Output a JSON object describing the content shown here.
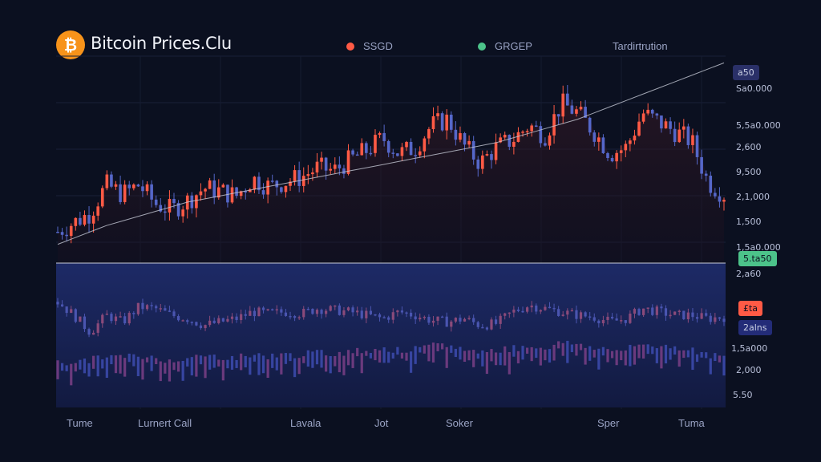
{
  "header": {
    "title": "Bitcoin Prices.Clu",
    "logo_glyph": "₿",
    "legend": [
      {
        "label": "SSGD",
        "color": "#ff5a45"
      },
      {
        "label": "GRGEP",
        "color": "#4cc38a"
      },
      {
        "label": "Tardirtrution",
        "color": ""
      }
    ]
  },
  "price_axis": {
    "labels": [
      "Sa0.000",
      "5,5a0.000",
      "2,600",
      "9,500",
      "2,1,000",
      "1,500",
      "1,5a0.000",
      "2,a60",
      "1,5a000",
      "2,000",
      "5.50"
    ],
    "badges": [
      {
        "text": "a50",
        "type": "current"
      },
      {
        "text": "5.ta50",
        "type": "green"
      },
      {
        "text": "£ta",
        "type": "red"
      },
      {
        "text": "2alns",
        "type": "blue"
      }
    ]
  },
  "x_axis": {
    "labels": [
      "Tume",
      "Lurnert Call",
      "Lavala",
      "Jot",
      "Soker",
      "Sper",
      "Tuma"
    ]
  },
  "colors": {
    "background": "#0b1020",
    "up": "#ff5a45",
    "down": "#5567c9",
    "green": "#4cc38a",
    "trend": "#c5c9d6",
    "lower_panel": "#141c44"
  },
  "chart_data": {
    "type": "line",
    "title": "Bitcoin Prices.Clu",
    "series": [
      {
        "name": "SSGD",
        "values": [
          40,
          46,
          52,
          70,
          64,
          70,
          58,
          54,
          60,
          68,
          66,
          63,
          74,
          69,
          72,
          75,
          81,
          79,
          86,
          92,
          100,
          90,
          94,
          108,
          112,
          95,
          84,
          94,
          99,
          108,
          102,
          122,
          116,
          104,
          90,
          94,
          116,
          110,
          104,
          98,
          72,
          64
        ]
      },
      {
        "name": "GRGEP",
        "values": [
          32,
          36,
          40,
          44,
          47,
          50,
          53,
          56,
          59,
          61,
          63,
          65,
          67,
          69,
          71,
          73,
          75,
          77,
          79,
          81,
          83,
          85,
          87,
          89,
          91,
          93,
          95,
          97,
          100,
          103,
          106,
          109,
          112,
          116,
          120,
          124,
          128,
          132,
          136,
          140,
          144,
          148
        ]
      },
      {
        "name": "Tardirtrution",
        "values": [
          48,
          40,
          30,
          40,
          36,
          45,
          44,
          40,
          38,
          34,
          36,
          38,
          42,
          41,
          42,
          41,
          44,
          43,
          42,
          40,
          38,
          42,
          40,
          37,
          36,
          38,
          34,
          35,
          42,
          46,
          44,
          42,
          40,
          39,
          36,
          38,
          44,
          42,
          40,
          40,
          38,
          39
        ]
      }
    ]
  }
}
